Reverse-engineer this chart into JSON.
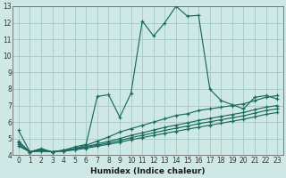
{
  "xlabel": "Humidex (Indice chaleur)",
  "ylabel": "",
  "bg_color": "#cde8e5",
  "grid_color": "#a8cdc9",
  "line_color": "#1a6b5e",
  "xlim": [
    -0.5,
    23.5
  ],
  "ylim": [
    4,
    13
  ],
  "yticks": [
    4,
    5,
    6,
    7,
    8,
    9,
    10,
    11,
    12,
    13
  ],
  "xticks": [
    0,
    1,
    2,
    3,
    4,
    5,
    6,
    7,
    8,
    9,
    10,
    11,
    12,
    13,
    14,
    15,
    16,
    17,
    18,
    19,
    20,
    21,
    22,
    23
  ],
  "series": [
    {
      "x": [
        0,
        1,
        2,
        3,
        4,
        5,
        6,
        7,
        8,
        9,
        10,
        11,
        12,
        13,
        14,
        15,
        16,
        17,
        18,
        19,
        20,
        21,
        22,
        23
      ],
      "y": [
        5.5,
        4.2,
        4.4,
        4.2,
        4.3,
        4.5,
        4.65,
        7.55,
        7.65,
        6.3,
        7.75,
        12.1,
        11.2,
        12.0,
        13.0,
        12.4,
        12.45,
        8.0,
        7.3,
        7.05,
        6.8,
        7.5,
        7.6,
        7.4
      ]
    },
    {
      "x": [
        0,
        1,
        2,
        3,
        4,
        5,
        6,
        7,
        8,
        9,
        10,
        11,
        12,
        13,
        14,
        15,
        16,
        17,
        18,
        19,
        20,
        21,
        22,
        23
      ],
      "y": [
        4.85,
        4.2,
        4.35,
        4.2,
        4.3,
        4.4,
        4.6,
        4.85,
        5.1,
        5.4,
        5.6,
        5.8,
        6.0,
        6.2,
        6.4,
        6.5,
        6.7,
        6.8,
        6.9,
        7.0,
        7.1,
        7.3,
        7.5,
        7.6
      ]
    },
    {
      "x": [
        0,
        1,
        2,
        3,
        4,
        5,
        6,
        7,
        8,
        9,
        10,
        11,
        12,
        13,
        14,
        15,
        16,
        17,
        18,
        19,
        20,
        21,
        22,
        23
      ],
      "y": [
        4.75,
        4.2,
        4.3,
        4.2,
        4.28,
        4.38,
        4.52,
        4.68,
        4.84,
        5.0,
        5.2,
        5.35,
        5.52,
        5.68,
        5.82,
        5.95,
        6.1,
        6.22,
        6.34,
        6.46,
        6.58,
        6.75,
        6.9,
        7.0
      ]
    },
    {
      "x": [
        0,
        1,
        2,
        3,
        4,
        5,
        6,
        7,
        8,
        9,
        10,
        11,
        12,
        13,
        14,
        15,
        16,
        17,
        18,
        19,
        20,
        21,
        22,
        23
      ],
      "y": [
        4.65,
        4.2,
        4.27,
        4.2,
        4.26,
        4.35,
        4.47,
        4.6,
        4.74,
        4.88,
        5.06,
        5.2,
        5.35,
        5.5,
        5.63,
        5.76,
        5.9,
        6.02,
        6.14,
        6.26,
        6.38,
        6.54,
        6.7,
        6.8
      ]
    },
    {
      "x": [
        0,
        1,
        2,
        3,
        4,
        5,
        6,
        7,
        8,
        9,
        10,
        11,
        12,
        13,
        14,
        15,
        16,
        17,
        18,
        19,
        20,
        21,
        22,
        23
      ],
      "y": [
        4.55,
        4.2,
        4.24,
        4.2,
        4.24,
        4.32,
        4.42,
        4.54,
        4.66,
        4.78,
        4.94,
        5.06,
        5.19,
        5.32,
        5.44,
        5.57,
        5.69,
        5.81,
        5.93,
        6.05,
        6.17,
        6.32,
        6.47,
        6.58
      ]
    }
  ]
}
